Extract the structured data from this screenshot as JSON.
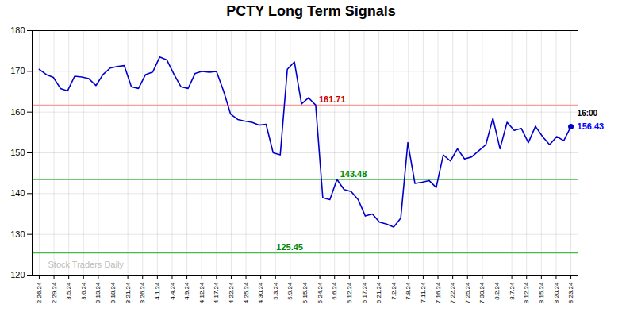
{
  "chart_data": {
    "type": "line",
    "title": "PCTY Long Term Signals",
    "x": [
      0,
      1,
      2,
      3,
      4,
      5,
      6,
      7,
      8,
      9,
      10,
      11,
      12,
      13,
      14,
      15,
      16,
      17,
      18,
      19,
      20,
      21,
      22,
      23,
      24,
      25,
      26,
      27,
      28,
      29,
      30,
      31,
      32,
      33,
      34,
      35,
      36,
      37,
      38,
      39,
      40,
      41,
      42,
      43,
      44,
      45,
      46,
      47,
      48,
      49,
      50,
      51,
      52,
      53,
      54,
      55,
      56,
      57,
      58,
      59,
      60,
      61,
      62,
      63,
      64,
      65,
      66,
      67,
      68,
      69,
      70,
      71,
      72,
      73,
      74,
      75
    ],
    "values": [
      170.5,
      169.2,
      168.5,
      165.8,
      165.2,
      168.8,
      168.6,
      168.2,
      166.5,
      169.2,
      170.8,
      171.2,
      171.4,
      166.2,
      165.8,
      169.2,
      169.8,
      173.5,
      172.8,
      169.3,
      166.2,
      165.8,
      169.5,
      170.0,
      169.8,
      170.0,
      165.2,
      159.5,
      158.2,
      157.8,
      157.5,
      156.8,
      157.0,
      150.0,
      149.5,
      170.5,
      172.3,
      162.0,
      163.5,
      161.71,
      139.0,
      138.5,
      143.48,
      141.0,
      140.5,
      138.5,
      134.5,
      135.0,
      133.0,
      132.5,
      131.8,
      134.0,
      152.5,
      142.5,
      142.8,
      143.2,
      141.5,
      149.5,
      148.0,
      151.0,
      148.5,
      149.0,
      150.5,
      152.0,
      158.5,
      151.0,
      157.5,
      155.5,
      156.0,
      152.5,
      156.5,
      154.0,
      152.0,
      154.0,
      153.0,
      156.43
    ],
    "color": "#0000cc",
    "xlim": [
      -1,
      76
    ],
    "xticks": [
      {
        "value": 0,
        "label": "2.26.24"
      },
      {
        "value": 2.0833,
        "label": "2.29.24"
      },
      {
        "value": 4.1667,
        "label": "3.5.24"
      },
      {
        "value": 6.25,
        "label": "3.6.24"
      },
      {
        "value": 8.3333,
        "label": "3.13.24"
      },
      {
        "value": 10.4167,
        "label": "3.18.24"
      },
      {
        "value": 12.5,
        "label": "3.21.24"
      },
      {
        "value": 14.5833,
        "label": "3.26.24"
      },
      {
        "value": 16.6667,
        "label": "4.1.24"
      },
      {
        "value": 18.75,
        "label": "4.4.24"
      },
      {
        "value": 20.8333,
        "label": "4.9.24"
      },
      {
        "value": 22.9167,
        "label": "4.12.24"
      },
      {
        "value": 25,
        "label": "4.17.24"
      },
      {
        "value": 27.0833,
        "label": "4.22.24"
      },
      {
        "value": 29.1667,
        "label": "4.25.24"
      },
      {
        "value": 31.25,
        "label": "4.30.24"
      },
      {
        "value": 33.3333,
        "label": "5.3.24"
      },
      {
        "value": 35.4167,
        "label": "5.9.24"
      },
      {
        "value": 37.5,
        "label": "5.15.24"
      },
      {
        "value": 39.5833,
        "label": "5.24.24"
      },
      {
        "value": 41.6667,
        "label": "6.6.24"
      },
      {
        "value": 43.75,
        "label": "6.12.24"
      },
      {
        "value": 45.8333,
        "label": "6.17.24"
      },
      {
        "value": 47.9167,
        "label": "6.21.24"
      },
      {
        "value": 50,
        "label": "7.2.24"
      },
      {
        "value": 52.0833,
        "label": "7.8.24"
      },
      {
        "value": 54.1667,
        "label": "7.11.24"
      },
      {
        "value": 56.25,
        "label": "7.16.24"
      },
      {
        "value": 58.3333,
        "label": "7.22.24"
      },
      {
        "value": 60.4167,
        "label": "7.25.24"
      },
      {
        "value": 62.5,
        "label": "7.30.24"
      },
      {
        "value": 64.5833,
        "label": "8.2.24"
      },
      {
        "value": 66.6667,
        "label": "8.7.24"
      },
      {
        "value": 68.75,
        "label": "8.12.24"
      },
      {
        "value": 70.8333,
        "label": "8.15.24"
      },
      {
        "value": 72.9167,
        "label": "8.20.24"
      },
      {
        "value": 75,
        "label": "8.23.24"
      }
    ],
    "ylim": [
      120,
      180
    ],
    "yticks": [
      120,
      130,
      140,
      150,
      160,
      170,
      180
    ],
    "grid": true,
    "reference_lines": [
      {
        "y": 161.71,
        "color": "#ff9999"
      },
      {
        "y": 143.48,
        "color": "#44bb44"
      },
      {
        "y": 125.45,
        "color": "#44bb44"
      }
    ],
    "annotations": [
      {
        "text": "161.71",
        "x": 39,
        "y": 161.71,
        "color": "#cc0000"
      },
      {
        "text": "143.48",
        "x": 42,
        "y": 143.48,
        "color": "#008800"
      },
      {
        "text": "125.45",
        "x": 33,
        "y": 125.45,
        "color": "#008800"
      },
      {
        "text": "16:00",
        "x": 75,
        "y": 159.63,
        "color": "#000000"
      },
      {
        "text": "156.43",
        "x": 75,
        "y": 156.43,
        "color": "#0000ff"
      }
    ],
    "watermark": {
      "text": "Stock Traders Daily",
      "color": "#bbbbbb"
    }
  }
}
